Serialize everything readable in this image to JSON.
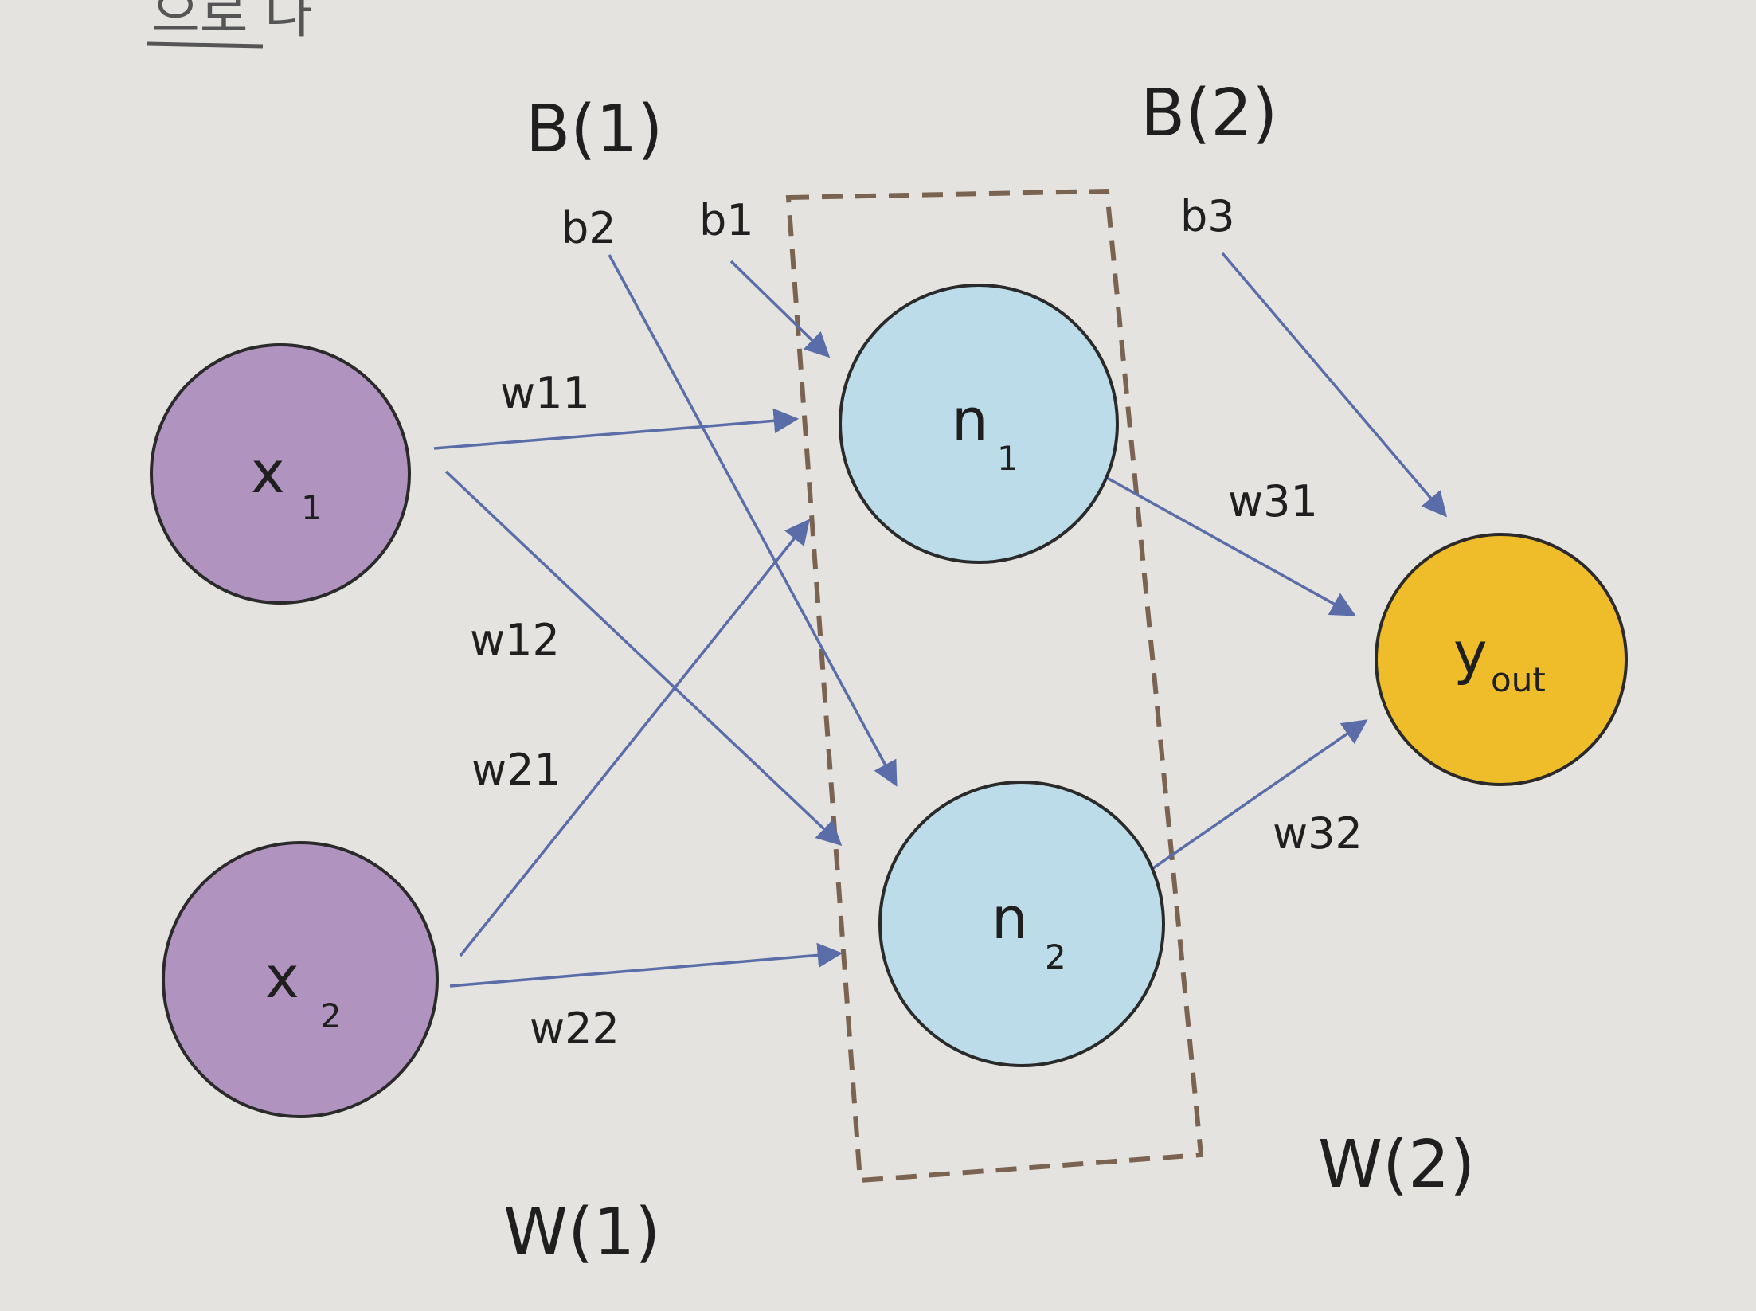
{
  "header_fragment": "으로 나",
  "colors": {
    "background": "#e4e3df",
    "input_node": "#b193c0",
    "hidden_node": "#bcdcea",
    "output_node": "#efbd2a",
    "arrow": "#5a6da8",
    "node_stroke": "#2a2a2a",
    "dashed_box": "#7a6350"
  },
  "groups": {
    "bias_1": "B(1)",
    "bias_2": "B(2)",
    "weights_1": "W(1)",
    "weights_2": "W(2)"
  },
  "nodes": {
    "x1": {
      "main": "x",
      "sub": "1"
    },
    "x2": {
      "main": "x",
      "sub": "2"
    },
    "n1": {
      "main": "n",
      "sub": "1"
    },
    "n2": {
      "main": "n",
      "sub": "2"
    },
    "yout": {
      "main": "y",
      "sub": "out"
    }
  },
  "biases": {
    "b1": "b1",
    "b2": "b2",
    "b3": "b3"
  },
  "edges": {
    "w11": "w11",
    "w12": "w12",
    "w21": "w21",
    "w22": "w22",
    "w31": "w31",
    "w32": "w32"
  }
}
